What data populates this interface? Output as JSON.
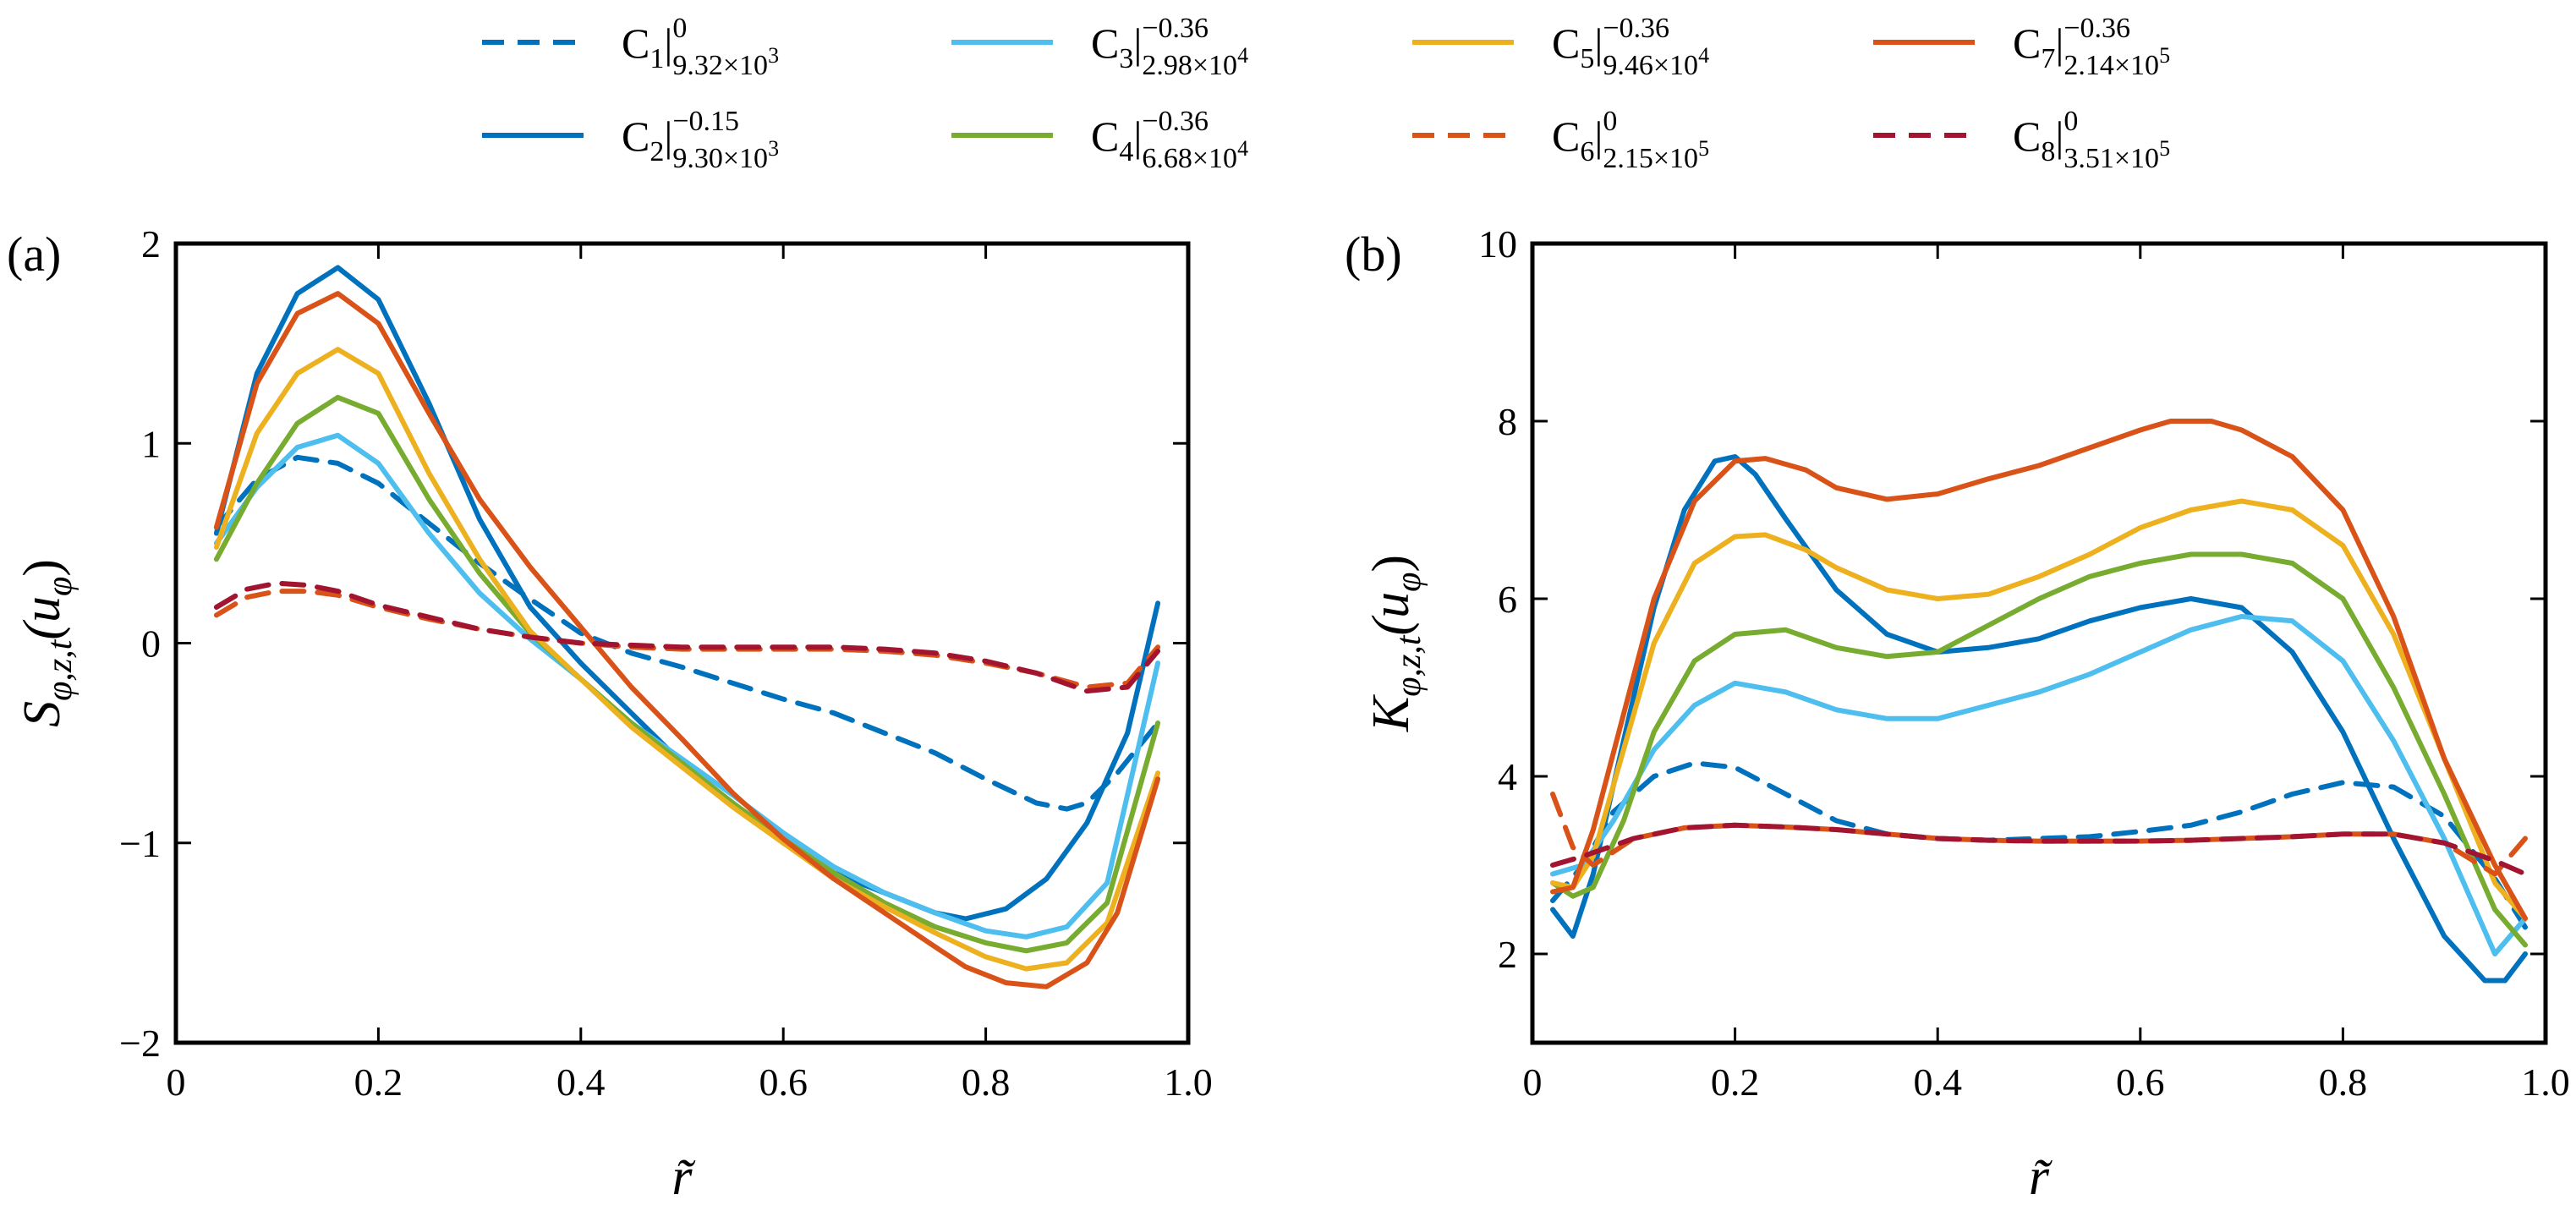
{
  "legend": {
    "entries": [
      {
        "id": "C1",
        "base": "C",
        "index": "1",
        "sup": "0",
        "sub": "9.32×10",
        "subexp": "3",
        "color": "#0072bd",
        "dashed": true
      },
      {
        "id": "C2",
        "base": "C",
        "index": "2",
        "sup": "−0.15",
        "sub": "9.30×10",
        "subexp": "3",
        "color": "#0072bd",
        "dashed": false
      },
      {
        "id": "C3",
        "base": "C",
        "index": "3",
        "sup": "−0.36",
        "sub": "2.98×10",
        "subexp": "4",
        "color": "#4dbeee",
        "dashed": false
      },
      {
        "id": "C4",
        "base": "C",
        "index": "4",
        "sup": "−0.36",
        "sub": "6.68×10",
        "subexp": "4",
        "color": "#77ac30",
        "dashed": false
      },
      {
        "id": "C5",
        "base": "C",
        "index": "5",
        "sup": "−0.36",
        "sub": "9.46×10",
        "subexp": "4",
        "color": "#edb120",
        "dashed": false
      },
      {
        "id": "C6",
        "base": "C",
        "index": "6",
        "sup": "0",
        "sub": "2.15×10",
        "subexp": "5",
        "color": "#d95319",
        "dashed": true
      },
      {
        "id": "C7",
        "base": "C",
        "index": "7",
        "sup": "−0.36",
        "sub": "2.14×10",
        "subexp": "5",
        "color": "#d95319",
        "dashed": false
      },
      {
        "id": "C8",
        "base": "C",
        "index": "8",
        "sup": "0",
        "sub": "3.51×10",
        "subexp": "5",
        "color": "#a2142f",
        "dashed": true
      }
    ]
  },
  "chart_data": [
    {
      "type": "line",
      "panel_label": "(a)",
      "xlabel": "r̃",
      "ylabel": {
        "main": "S",
        "sub": "φ,z,t",
        "tail": "(u",
        "tailsub": "φ",
        "close": ")"
      },
      "xlim": [
        0,
        1.0
      ],
      "ylim": [
        -2,
        2
      ],
      "xticks": [
        0,
        0.2,
        0.4,
        0.6,
        0.8,
        1.0
      ],
      "xtick_labels": [
        "0",
        "0.2",
        "0.4",
        "0.6",
        "0.8",
        "1.0"
      ],
      "yticks": [
        -2,
        -1,
        0,
        1,
        2
      ],
      "ytick_labels": [
        "−2",
        "−1",
        "0",
        "1",
        "2"
      ],
      "series": [
        {
          "name": "C1",
          "x": [
            0.04,
            0.08,
            0.12,
            0.16,
            0.2,
            0.25,
            0.3,
            0.35,
            0.4,
            0.45,
            0.5,
            0.55,
            0.6,
            0.65,
            0.7,
            0.75,
            0.8,
            0.85,
            0.88,
            0.9,
            0.93,
            0.97
          ],
          "y": [
            0.58,
            0.82,
            0.93,
            0.9,
            0.8,
            0.6,
            0.4,
            0.22,
            0.05,
            -0.05,
            -0.12,
            -0.2,
            -0.28,
            -0.35,
            -0.45,
            -0.55,
            -0.68,
            -0.8,
            -0.83,
            -0.8,
            -0.65,
            -0.4
          ]
        },
        {
          "name": "C2",
          "x": [
            0.04,
            0.08,
            0.12,
            0.16,
            0.2,
            0.25,
            0.3,
            0.35,
            0.4,
            0.45,
            0.5,
            0.55,
            0.6,
            0.65,
            0.7,
            0.75,
            0.78,
            0.82,
            0.86,
            0.9,
            0.94,
            0.97
          ],
          "y": [
            0.55,
            1.35,
            1.75,
            1.88,
            1.72,
            1.2,
            0.62,
            0.18,
            -0.1,
            -0.35,
            -0.6,
            -0.8,
            -1.0,
            -1.15,
            -1.25,
            -1.35,
            -1.38,
            -1.33,
            -1.18,
            -0.9,
            -0.45,
            0.2
          ]
        },
        {
          "name": "C3",
          "x": [
            0.04,
            0.08,
            0.12,
            0.16,
            0.2,
            0.25,
            0.3,
            0.35,
            0.4,
            0.45,
            0.5,
            0.55,
            0.6,
            0.65,
            0.7,
            0.75,
            0.8,
            0.84,
            0.88,
            0.92,
            0.97
          ],
          "y": [
            0.5,
            0.78,
            0.98,
            1.04,
            0.9,
            0.55,
            0.25,
            0.02,
            -0.18,
            -0.4,
            -0.58,
            -0.76,
            -0.95,
            -1.12,
            -1.25,
            -1.35,
            -1.44,
            -1.47,
            -1.42,
            -1.2,
            -0.1
          ]
        },
        {
          "name": "C4",
          "x": [
            0.04,
            0.08,
            0.12,
            0.16,
            0.2,
            0.25,
            0.3,
            0.35,
            0.4,
            0.45,
            0.5,
            0.55,
            0.6,
            0.65,
            0.7,
            0.75,
            0.8,
            0.84,
            0.88,
            0.92,
            0.97
          ],
          "y": [
            0.42,
            0.8,
            1.1,
            1.23,
            1.15,
            0.72,
            0.35,
            0.05,
            -0.18,
            -0.4,
            -0.6,
            -0.8,
            -0.98,
            -1.15,
            -1.3,
            -1.42,
            -1.5,
            -1.54,
            -1.5,
            -1.3,
            -0.4
          ]
        },
        {
          "name": "C5",
          "x": [
            0.04,
            0.08,
            0.12,
            0.16,
            0.2,
            0.25,
            0.3,
            0.35,
            0.4,
            0.45,
            0.5,
            0.55,
            0.6,
            0.65,
            0.7,
            0.75,
            0.8,
            0.84,
            0.88,
            0.92,
            0.97
          ],
          "y": [
            0.48,
            1.05,
            1.35,
            1.47,
            1.35,
            0.85,
            0.42,
            0.06,
            -0.18,
            -0.42,
            -0.62,
            -0.82,
            -1.0,
            -1.18,
            -1.32,
            -1.45,
            -1.57,
            -1.63,
            -1.6,
            -1.4,
            -0.65
          ]
        },
        {
          "name": "C6",
          "x": [
            0.04,
            0.07,
            0.1,
            0.13,
            0.16,
            0.2,
            0.25,
            0.3,
            0.35,
            0.4,
            0.45,
            0.5,
            0.55,
            0.6,
            0.65,
            0.7,
            0.75,
            0.8,
            0.85,
            0.9,
            0.94,
            0.97
          ],
          "y": [
            0.14,
            0.23,
            0.26,
            0.26,
            0.24,
            0.18,
            0.12,
            0.07,
            0.03,
            0.0,
            -0.02,
            -0.03,
            -0.03,
            -0.03,
            -0.03,
            -0.04,
            -0.06,
            -0.1,
            -0.15,
            -0.22,
            -0.2,
            -0.02
          ]
        },
        {
          "name": "C7",
          "x": [
            0.04,
            0.08,
            0.12,
            0.16,
            0.2,
            0.25,
            0.3,
            0.35,
            0.4,
            0.45,
            0.5,
            0.55,
            0.6,
            0.65,
            0.7,
            0.75,
            0.78,
            0.82,
            0.86,
            0.9,
            0.93,
            0.97
          ],
          "y": [
            0.58,
            1.3,
            1.65,
            1.75,
            1.6,
            1.15,
            0.72,
            0.38,
            0.08,
            -0.22,
            -0.48,
            -0.75,
            -0.98,
            -1.18,
            -1.35,
            -1.52,
            -1.62,
            -1.7,
            -1.72,
            -1.6,
            -1.35,
            -0.68
          ]
        },
        {
          "name": "C8",
          "x": [
            0.04,
            0.07,
            0.1,
            0.13,
            0.16,
            0.2,
            0.25,
            0.3,
            0.35,
            0.4,
            0.45,
            0.5,
            0.55,
            0.6,
            0.65,
            0.7,
            0.75,
            0.8,
            0.85,
            0.9,
            0.94,
            0.97
          ],
          "y": [
            0.18,
            0.27,
            0.3,
            0.29,
            0.26,
            0.19,
            0.13,
            0.07,
            0.03,
            0.0,
            -0.01,
            -0.02,
            -0.02,
            -0.02,
            -0.02,
            -0.03,
            -0.05,
            -0.09,
            -0.15,
            -0.24,
            -0.22,
            -0.04
          ]
        }
      ]
    },
    {
      "type": "line",
      "panel_label": "(b)",
      "xlabel": "r̃",
      "ylabel": {
        "main": "K",
        "sub": "φ,z,t",
        "tail": "(u",
        "tailsub": "φ",
        "close": ")"
      },
      "xlim": [
        0,
        1.0
      ],
      "ylim": [
        1,
        10
      ],
      "xticks": [
        0,
        0.2,
        0.4,
        0.6,
        0.8,
        1.0
      ],
      "xtick_labels": [
        "0",
        "0.2",
        "0.4",
        "0.6",
        "0.8",
        "1.0"
      ],
      "yticks": [
        2,
        4,
        6,
        8,
        10
      ],
      "ytick_labels": [
        "2",
        "4",
        "6",
        "8",
        "10"
      ],
      "series": [
        {
          "name": "C1",
          "x": [
            0.02,
            0.05,
            0.08,
            0.12,
            0.16,
            0.2,
            0.25,
            0.3,
            0.35,
            0.4,
            0.45,
            0.5,
            0.55,
            0.6,
            0.65,
            0.7,
            0.75,
            0.8,
            0.85,
            0.9,
            0.95,
            0.98
          ],
          "y": [
            2.6,
            3.0,
            3.6,
            4.0,
            4.15,
            4.1,
            3.8,
            3.5,
            3.35,
            3.3,
            3.28,
            3.3,
            3.32,
            3.38,
            3.45,
            3.6,
            3.8,
            3.93,
            3.88,
            3.55,
            2.85,
            2.3
          ]
        },
        {
          "name": "C2",
          "x": [
            0.02,
            0.04,
            0.06,
            0.09,
            0.12,
            0.15,
            0.18,
            0.2,
            0.22,
            0.25,
            0.3,
            0.35,
            0.4,
            0.45,
            0.5,
            0.55,
            0.6,
            0.65,
            0.7,
            0.75,
            0.8,
            0.85,
            0.9,
            0.94,
            0.96,
            0.98
          ],
          "y": [
            2.5,
            2.2,
            2.9,
            4.4,
            5.9,
            7.0,
            7.55,
            7.6,
            7.4,
            6.9,
            6.1,
            5.6,
            5.4,
            5.45,
            5.55,
            5.75,
            5.9,
            6.0,
            5.9,
            5.4,
            4.5,
            3.3,
            2.2,
            1.7,
            1.7,
            2.0
          ]
        },
        {
          "name": "C3",
          "x": [
            0.02,
            0.05,
            0.08,
            0.12,
            0.16,
            0.2,
            0.25,
            0.3,
            0.35,
            0.4,
            0.45,
            0.5,
            0.55,
            0.6,
            0.65,
            0.7,
            0.75,
            0.8,
            0.85,
            0.9,
            0.95,
            0.98
          ],
          "y": [
            2.9,
            3.0,
            3.5,
            4.3,
            4.8,
            5.05,
            4.95,
            4.75,
            4.65,
            4.65,
            4.8,
            4.95,
            5.15,
            5.4,
            5.65,
            5.8,
            5.75,
            5.3,
            4.4,
            3.3,
            2.0,
            2.4
          ]
        },
        {
          "name": "C4",
          "x": [
            0.02,
            0.04,
            0.06,
            0.09,
            0.12,
            0.16,
            0.2,
            0.25,
            0.3,
            0.35,
            0.4,
            0.45,
            0.5,
            0.55,
            0.6,
            0.65,
            0.7,
            0.75,
            0.8,
            0.85,
            0.9,
            0.95,
            0.98
          ],
          "y": [
            2.8,
            2.65,
            2.75,
            3.5,
            4.5,
            5.3,
            5.6,
            5.65,
            5.45,
            5.35,
            5.4,
            5.7,
            6.0,
            6.25,
            6.4,
            6.5,
            6.5,
            6.4,
            6.0,
            5.0,
            3.8,
            2.5,
            2.1
          ]
        },
        {
          "name": "C5",
          "x": [
            0.02,
            0.04,
            0.06,
            0.09,
            0.12,
            0.16,
            0.2,
            0.23,
            0.27,
            0.3,
            0.35,
            0.4,
            0.45,
            0.5,
            0.55,
            0.6,
            0.65,
            0.7,
            0.75,
            0.8,
            0.85,
            0.9,
            0.95,
            0.98
          ],
          "y": [
            2.8,
            2.75,
            3.1,
            4.3,
            5.5,
            6.4,
            6.7,
            6.72,
            6.55,
            6.35,
            6.1,
            6.0,
            6.05,
            6.25,
            6.5,
            6.8,
            7.0,
            7.1,
            7.0,
            6.6,
            5.6,
            4.2,
            2.8,
            2.4
          ]
        },
        {
          "name": "C6",
          "x": [
            0.02,
            0.04,
            0.06,
            0.1,
            0.15,
            0.2,
            0.25,
            0.3,
            0.35,
            0.4,
            0.45,
            0.5,
            0.55,
            0.6,
            0.65,
            0.7,
            0.75,
            0.8,
            0.85,
            0.9,
            0.95,
            0.98
          ],
          "y": [
            3.8,
            3.2,
            3.0,
            3.3,
            3.42,
            3.45,
            3.43,
            3.4,
            3.35,
            3.3,
            3.28,
            3.27,
            3.27,
            3.27,
            3.28,
            3.3,
            3.32,
            3.35,
            3.35,
            3.25,
            2.9,
            3.3
          ]
        },
        {
          "name": "C7",
          "x": [
            0.02,
            0.04,
            0.06,
            0.09,
            0.12,
            0.16,
            0.2,
            0.23,
            0.27,
            0.3,
            0.35,
            0.4,
            0.45,
            0.5,
            0.55,
            0.6,
            0.63,
            0.67,
            0.7,
            0.75,
            0.8,
            0.85,
            0.9,
            0.95,
            0.98
          ],
          "y": [
            2.7,
            2.75,
            3.4,
            4.7,
            6.0,
            7.1,
            7.55,
            7.58,
            7.45,
            7.25,
            7.12,
            7.18,
            7.35,
            7.5,
            7.7,
            7.9,
            8.0,
            8.0,
            7.9,
            7.6,
            7.0,
            5.8,
            4.2,
            3.0,
            2.4
          ]
        },
        {
          "name": "C8",
          "x": [
            0.02,
            0.05,
            0.1,
            0.15,
            0.2,
            0.25,
            0.3,
            0.35,
            0.4,
            0.45,
            0.5,
            0.55,
            0.6,
            0.65,
            0.7,
            0.75,
            0.8,
            0.85,
            0.9,
            0.95,
            0.98
          ],
          "y": [
            3.0,
            3.1,
            3.3,
            3.42,
            3.45,
            3.43,
            3.4,
            3.35,
            3.3,
            3.28,
            3.27,
            3.27,
            3.27,
            3.28,
            3.3,
            3.32,
            3.35,
            3.35,
            3.25,
            3.05,
            2.9
          ]
        }
      ]
    }
  ]
}
